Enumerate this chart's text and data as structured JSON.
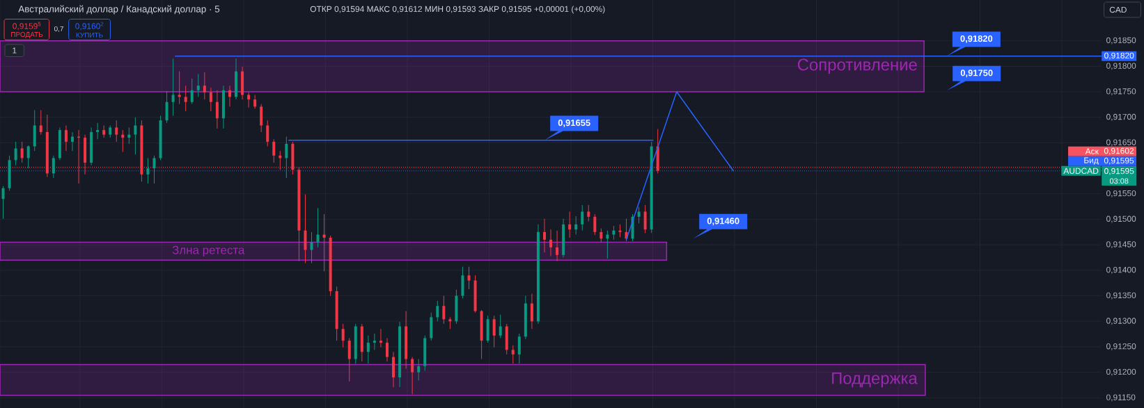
{
  "chart_data": {
    "type": "candlestick",
    "title": "Австралийский доллар / Канадский доллар · 5",
    "subtitle": "ОТКР 0,91594 МАКС 0,91612 МИН 0,91593 ЗАКР 0,91595 +0,00001 (+0,00%)",
    "categories": [
      null,
      null,
      null,
      null,
      null,
      null,
      null,
      null,
      null,
      null,
      null,
      null,
      null,
      null,
      null,
      null,
      null,
      null,
      null,
      null,
      null,
      null,
      null,
      null,
      null,
      null,
      null,
      null,
      null,
      null,
      null,
      null,
      null,
      null,
      null,
      null,
      null,
      null,
      null,
      null,
      null,
      null,
      null,
      null,
      null,
      null,
      null,
      null,
      null,
      null,
      null,
      null,
      null,
      null,
      null,
      null,
      null,
      null,
      null,
      null,
      null,
      null,
      null,
      null,
      null,
      null,
      null,
      null,
      null,
      null,
      null,
      null,
      null,
      null,
      null,
      null,
      null,
      null,
      null,
      null,
      null,
      null,
      null,
      null,
      null,
      null,
      null,
      null,
      null,
      null,
      null,
      null,
      null,
      null,
      null,
      null,
      null,
      null,
      null,
      null,
      null,
      null,
      null,
      null,
      null,
      null,
      null,
      null,
      null,
      null,
      null,
      null,
      null,
      null,
      null,
      null,
      null,
      null,
      null,
      null,
      null,
      null,
      null,
      null,
      null,
      null,
      null,
      null,
      null,
      null,
      null,
      null,
      null,
      null,
      null,
      null,
      null,
      null,
      null,
      null,
      null,
      null,
      null,
      null,
      null,
      null,
      null,
      null,
      null,
      null,
      null,
      null,
      null,
      null,
      null,
      null,
      null,
      null,
      null,
      null,
      null,
      null,
      null,
      null,
      null,
      null,
      null,
      null,
      null,
      null,
      null,
      null,
      null,
      null,
      null
    ],
    "ohlc": [
      [
        0.9154,
        0.91565,
        0.91501,
        0.91561
      ],
      [
        0.91561,
        0.91625,
        0.91556,
        0.91616
      ],
      [
        0.91616,
        0.91652,
        0.91606,
        0.91639
      ],
      [
        0.91639,
        0.91652,
        0.91611,
        0.9162
      ],
      [
        0.9162,
        0.91645,
        0.916,
        0.91643
      ],
      [
        0.91643,
        0.91714,
        0.91634,
        0.91684
      ],
      [
        0.91684,
        0.91714,
        0.91666,
        0.91671
      ],
      [
        0.91671,
        0.91705,
        0.91583,
        0.9159
      ],
      [
        0.9159,
        0.91625,
        0.91581,
        0.9162
      ],
      [
        0.9162,
        0.9168,
        0.91616,
        0.91675
      ],
      [
        0.91675,
        0.91684,
        0.91634,
        0.91652
      ],
      [
        0.91652,
        0.91671,
        0.91634,
        0.91662
      ],
      [
        0.91662,
        0.91675,
        0.9157,
        0.9166
      ],
      [
        0.9166,
        0.91666,
        0.91588,
        0.91611
      ],
      [
        0.91611,
        0.9168,
        0.91606,
        0.91671
      ],
      [
        0.91671,
        0.91689,
        0.91657,
        0.91675
      ],
      [
        0.91675,
        0.91684,
        0.9166,
        0.91666
      ],
      [
        0.91666,
        0.91684,
        0.9166,
        0.9168
      ],
      [
        0.9168,
        0.91694,
        0.91652,
        0.91666
      ],
      [
        0.91666,
        0.91675,
        0.91632,
        0.9166
      ],
      [
        0.9166,
        0.9168,
        0.91648,
        0.91666
      ],
      [
        0.91666,
        0.917,
        0.91627,
        0.91684
      ],
      [
        0.91684,
        0.91694,
        0.91574,
        0.91588
      ],
      [
        0.91588,
        0.9162,
        0.9157,
        0.916
      ],
      [
        0.916,
        0.91625,
        0.9157,
        0.9162
      ],
      [
        0.9162,
        0.91703,
        0.91616,
        0.91694
      ],
      [
        0.91694,
        0.91751,
        0.91689,
        0.9173
      ],
      [
        0.9173,
        0.91815,
        0.91703,
        0.91744
      ],
      [
        0.91744,
        0.9179,
        0.91726,
        0.9174
      ],
      [
        0.9174,
        0.91762,
        0.91712,
        0.9173
      ],
      [
        0.9173,
        0.91776,
        0.91726,
        0.91753
      ],
      [
        0.91753,
        0.91785,
        0.9174,
        0.91762
      ],
      [
        0.91762,
        0.91788,
        0.91735,
        0.91749
      ],
      [
        0.91749,
        0.91758,
        0.91712,
        0.9173
      ],
      [
        0.9173,
        0.91753,
        0.91678,
        0.91698
      ],
      [
        0.91698,
        0.91762,
        0.91678,
        0.91753
      ],
      [
        0.91753,
        0.91762,
        0.91721,
        0.9174
      ],
      [
        0.9174,
        0.91815,
        0.91735,
        0.9179
      ],
      [
        0.9179,
        0.91799,
        0.91735,
        0.91744
      ],
      [
        0.91744,
        0.91749,
        0.91719,
        0.91735
      ],
      [
        0.91735,
        0.91744,
        0.91717,
        0.91721
      ],
      [
        0.91721,
        0.91726,
        0.91671,
        0.91684
      ],
      [
        0.91684,
        0.91694,
        0.91643,
        0.91652
      ],
      [
        0.91652,
        0.91657,
        0.91611,
        0.91625
      ],
      [
        0.91625,
        0.91634,
        0.91597,
        0.9162
      ],
      [
        0.9162,
        0.91662,
        0.91581,
        0.91648
      ],
      [
        0.91648,
        0.91652,
        0.91588,
        0.91597
      ],
      [
        0.91597,
        0.91602,
        0.91418,
        0.91478
      ],
      [
        0.91478,
        0.91549,
        0.91414,
        0.9144
      ],
      [
        0.9144,
        0.91475,
        0.91414,
        0.91455
      ],
      [
        0.91455,
        0.91522,
        0.91445,
        0.9147
      ],
      [
        0.9147,
        0.9151,
        0.91398,
        0.91464
      ],
      [
        0.91464,
        0.91468,
        0.9135,
        0.91359
      ],
      [
        0.91359,
        0.91368,
        0.91262,
        0.91285
      ],
      [
        0.91285,
        0.91295,
        0.91249,
        0.91262
      ],
      [
        0.91262,
        0.91267,
        0.91182,
        0.91226
      ],
      [
        0.91226,
        0.91295,
        0.91217,
        0.9129
      ],
      [
        0.9129,
        0.91295,
        0.91221,
        0.9124
      ],
      [
        0.9124,
        0.91272,
        0.91217,
        0.91258
      ],
      [
        0.91258,
        0.91276,
        0.91244,
        0.91262
      ],
      [
        0.91262,
        0.91285,
        0.91249,
        0.91258
      ],
      [
        0.91258,
        0.91267,
        0.91221,
        0.9123
      ],
      [
        0.9123,
        0.9124,
        0.91171,
        0.9119
      ],
      [
        0.9119,
        0.91299,
        0.91171,
        0.9129
      ],
      [
        0.9129,
        0.9132,
        0.91207,
        0.91226
      ],
      [
        0.91226,
        0.9123,
        0.91157,
        0.912
      ],
      [
        0.912,
        0.91226,
        0.91184,
        0.91212
      ],
      [
        0.91212,
        0.91272,
        0.91203,
        0.91267
      ],
      [
        0.91267,
        0.91317,
        0.91262,
        0.91308
      ],
      [
        0.91308,
        0.9134,
        0.913,
        0.9133
      ],
      [
        0.9133,
        0.9135,
        0.91295,
        0.91304
      ],
      [
        0.91304,
        0.91308,
        0.91285,
        0.913
      ],
      [
        0.913,
        0.91362,
        0.91295,
        0.9135
      ],
      [
        0.9135,
        0.91407,
        0.91345,
        0.9139
      ],
      [
        0.9139,
        0.91407,
        0.91363,
        0.9138
      ],
      [
        0.9138,
        0.9139,
        0.91317,
        0.9132
      ],
      [
        0.9132,
        0.91322,
        0.91226,
        0.91262
      ],
      [
        0.91262,
        0.91311,
        0.91258,
        0.91304
      ],
      [
        0.91304,
        0.91311,
        0.91249,
        0.91272
      ],
      [
        0.91272,
        0.91313,
        0.91267,
        0.9129
      ],
      [
        0.9129,
        0.91295,
        0.91235,
        0.91244
      ],
      [
        0.91244,
        0.91253,
        0.91217,
        0.91235
      ],
      [
        0.91235,
        0.91276,
        0.91217,
        0.9127
      ],
      [
        0.9127,
        0.9135,
        0.91265,
        0.91335
      ],
      [
        0.91335,
        0.91354,
        0.91285,
        0.913
      ],
      [
        0.913,
        0.9149,
        0.91295,
        0.91475
      ],
      [
        0.91475,
        0.91501,
        0.91435,
        0.9146
      ],
      [
        0.9146,
        0.9148,
        0.91428,
        0.91445
      ],
      [
        0.91445,
        0.91478,
        0.91418,
        0.9143
      ],
      [
        0.9143,
        0.91501,
        0.91425,
        0.9149
      ],
      [
        0.9149,
        0.91515,
        0.91464,
        0.9148
      ],
      [
        0.9148,
        0.91506,
        0.9147,
        0.9149
      ],
      [
        0.9149,
        0.91528,
        0.91478,
        0.91515
      ],
      [
        0.91515,
        0.91528,
        0.91496,
        0.91505
      ],
      [
        0.91505,
        0.9151,
        0.91469,
        0.91475
      ],
      [
        0.91475,
        0.91482,
        0.91455,
        0.91462
      ],
      [
        0.91462,
        0.91478,
        0.91423,
        0.9147
      ],
      [
        0.9147,
        0.91487,
        0.9146,
        0.91478
      ],
      [
        0.91478,
        0.9149,
        0.91465,
        0.91475
      ],
      [
        0.91475,
        0.91501,
        0.91457,
        0.91462
      ],
      [
        0.91462,
        0.9151,
        0.91457,
        0.91505
      ],
      [
        0.91505,
        0.91524,
        0.91492,
        0.91515
      ],
      [
        0.91515,
        0.91528,
        0.91473,
        0.9148
      ],
      [
        0.9148,
        0.91652,
        0.91473,
        0.91643
      ],
      [
        0.91643,
        0.91677,
        0.9159,
        0.91595
      ],
      null,
      null,
      null,
      null,
      null,
      null,
      null,
      null,
      null,
      null,
      null,
      null,
      null,
      null,
      null,
      null,
      null,
      null,
      null,
      null,
      null,
      null,
      null,
      null,
      null,
      null,
      null,
      null,
      null,
      null,
      null,
      null,
      null,
      null,
      null,
      null,
      null,
      null,
      null,
      null,
      null,
      null,
      null,
      null,
      null,
      null,
      null,
      null,
      null,
      null,
      null,
      null,
      null,
      null,
      null,
      null,
      null,
      null,
      null,
      null,
      null,
      null,
      null,
      null,
      null,
      null,
      null,
      null,
      null,
      null
    ],
    "series": [
      {
        "type": "line",
        "color": "#2962ff",
        "values": [
          null,
          null,
          null,
          null,
          null,
          null,
          null,
          null,
          null,
          null,
          null,
          null,
          null,
          null,
          null,
          null,
          null,
          null,
          null,
          null,
          null,
          null,
          null,
          null,
          null,
          null,
          null,
          null,
          null,
          null,
          null,
          null,
          null,
          null,
          null,
          null,
          null,
          null,
          null,
          null,
          null,
          null,
          null,
          null,
          null,
          null,
          null,
          null,
          null,
          null,
          null,
          null,
          null,
          null,
          null,
          null,
          null,
          null,
          null,
          null,
          null,
          null,
          null,
          null,
          null,
          null,
          null,
          null,
          null,
          null,
          null,
          null,
          null,
          null,
          null,
          null,
          null,
          null,
          null,
          null,
          null,
          null,
          null,
          null,
          null,
          null,
          null,
          null,
          null,
          null,
          null,
          null,
          null,
          null,
          null,
          null,
          null,
          null,
          null,
          0.9146,
          null,
          null,
          null,
          null,
          null,
          null,
          null,
          0.9175,
          null,
          null,
          null,
          null,
          null,
          null,
          null,
          null,
          0.91595,
          null,
          null,
          null,
          null,
          null,
          null,
          null,
          null,
          null,
          null,
          null,
          null,
          null,
          null,
          null,
          null,
          null,
          null,
          null,
          null,
          null,
          null,
          null,
          null,
          null,
          null,
          null,
          null,
          null,
          null,
          null,
          null,
          null,
          null,
          null,
          null,
          null,
          null,
          null,
          null,
          null,
          null,
          null,
          null,
          null,
          null,
          null,
          null,
          null,
          null,
          null,
          null,
          null,
          null,
          null,
          null,
          null,
          null
        ]
      }
    ],
    "ylim": [
      0.9113,
      0.9193
    ],
    "yticks": [
      {
        "value": 0.9115,
        "label": "0,91150"
      },
      {
        "value": 0.912,
        "label": "0,91200"
      },
      {
        "value": 0.9125,
        "label": "0,91250"
      },
      {
        "value": 0.913,
        "label": "0,91300"
      },
      {
        "value": 0.9135,
        "label": "0,91350"
      },
      {
        "value": 0.914,
        "label": "0,91400"
      },
      {
        "value": 0.9145,
        "label": "0,91450"
      },
      {
        "value": 0.915,
        "label": "0,91500"
      },
      {
        "value": 0.9155,
        "label": "0,91550"
      },
      {
        "value": 0.916,
        "label": null
      },
      {
        "value": 0.9165,
        "label": "0,91650"
      },
      {
        "value": 0.917,
        "label": "0,91700"
      },
      {
        "value": 0.9175,
        "label": "0,91750"
      },
      {
        "value": 0.918,
        "label": "0,91800"
      },
      {
        "value": 0.9185,
        "label": "0,91850"
      }
    ],
    "grid": true,
    "tick_labels": "y",
    "bands": [
      {
        "axis": "y",
        "from": 0.9175,
        "to": 0.9185,
        "label": "Сопротивление",
        "color": "#9c27b0"
      },
      {
        "axis": "y",
        "from": 0.9142,
        "to": 0.91455,
        "label": "Злна ретеста",
        "color": "#9c27b0"
      },
      {
        "axis": "y",
        "from": 0.91155,
        "to": 0.91215,
        "label": "Поддержка",
        "color": "#9c27b0"
      }
    ],
    "ref_lines": [
      {
        "axis": "y",
        "value": 0.9182,
        "label": "0,91820",
        "color": "#2962ff"
      },
      {
        "axis": "y",
        "value": 0.91655,
        "color": "#2962ff"
      },
      {
        "axis": "y",
        "value": 0.91602,
        "label": "0,91602",
        "color": "#f7525f",
        "line_style": "dotted"
      },
      {
        "axis": "y",
        "value": 0.91595,
        "label": "0,91595",
        "color": "#2962ff",
        "line_style": "dotted"
      }
    ],
    "annotations": [
      {
        "text": "0,91820",
        "y": 0.9182
      },
      "0,91750",
      {
        "text": "0,91655",
        "y": 0.91655
      },
      "0,91460",
      {
        "text": "Аск",
        "y": 0.91602
      },
      {
        "text": "Бид",
        "y": 0.91595
      },
      {
        "text": "AUDCAD",
        "y": 0.91595
      },
      "0,91595",
      "03:08",
      "0,9159$^{5}$",
      "ПРОДАТЬ",
      "0,7",
      "0,9160$^{2}$",
      "КУПИТЬ",
      "1",
      "CAD"
    ]
  }
}
